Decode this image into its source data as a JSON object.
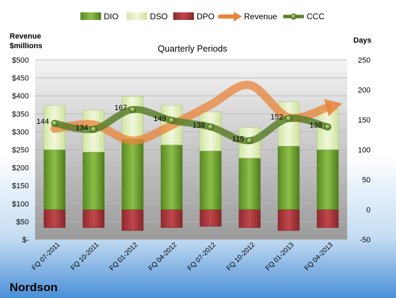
{
  "chart_data": {
    "type": "bar",
    "title": "Quarterly Periods",
    "company": "Nordson",
    "left_axis_label": [
      "Revenue",
      "$millions"
    ],
    "right_axis_label": "Days",
    "left_axis": {
      "min": 0,
      "max": 500,
      "step": 50,
      "tick_labels": [
        "$-",
        "$50",
        "$100",
        "$150",
        "$200",
        "$250",
        "$300",
        "$350",
        "$400",
        "$450",
        "$500"
      ]
    },
    "right_axis": {
      "min": -50,
      "max": 250,
      "step": 50,
      "tick_labels": [
        "-50",
        "0",
        "50",
        "100",
        "150",
        "200",
        "250"
      ]
    },
    "categories": [
      "FQ 07-2011",
      "FQ 10-2011",
      "FQ 01-2012",
      "FQ 04-2012",
      "FQ 07-2012",
      "FQ 10-2012",
      "FQ 01-2013",
      "FQ 04-2013"
    ],
    "legend_position": "top",
    "series": [
      {
        "name": "DIO",
        "axis": "right",
        "color": "#6f9b2f",
        "values": [
          100,
          96,
          118,
          108,
          98,
          86,
          106,
          100
        ]
      },
      {
        "name": "DSO",
        "axis": "right",
        "color": "#dcebb5",
        "values": [
          74,
          70,
          71,
          66,
          65,
          51,
          74,
          68
        ]
      },
      {
        "name": "DPO",
        "axis": "right",
        "color": "#a8353a",
        "values": [
          -30,
          -30,
          -35,
          -30,
          -28,
          -30,
          -35,
          -30
        ]
      },
      {
        "name": "Revenue",
        "axis": "left",
        "color": "#e8843a",
        "values": [
          308,
          320,
          275,
          318,
          375,
          430,
          340,
          368
        ]
      },
      {
        "name": "CCC",
        "axis": "right",
        "color": "#5c7f2c",
        "values": [
          144,
          134,
          167,
          149,
          138,
          115,
          152,
          138
        ]
      }
    ],
    "ccc_labels": [
      "144",
      "134",
      "167",
      "149",
      "138",
      "115",
      "152",
      "138"
    ],
    "grid": true
  }
}
